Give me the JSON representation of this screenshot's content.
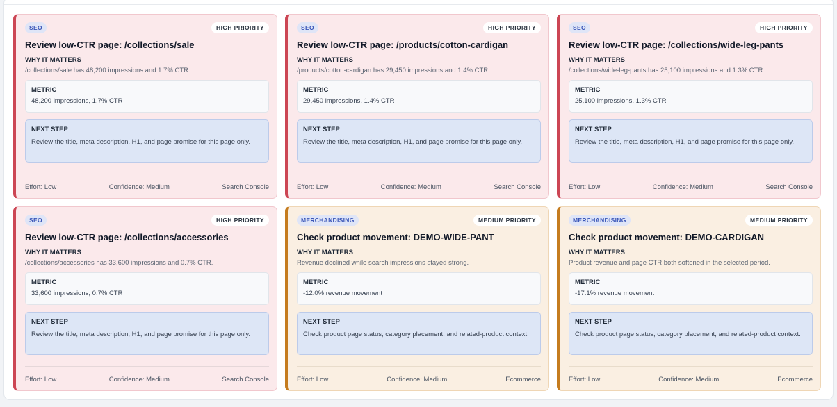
{
  "cards": [
    {
      "tag": "SEO",
      "priority": "HIGH PRIORITY",
      "title": "Review low-CTR page: /collections/sale",
      "why_label": "WHY IT MATTERS",
      "why_text": "/collections/sale has 48,200 impressions and 1.7% CTR.",
      "metric_label": "METRIC",
      "metric_value": "48,200 impressions, 1.7% CTR",
      "next_label": "NEXT STEP",
      "next_text": "Review the title, meta description, H1, and page promise for this page only.",
      "effort": "Effort: Low",
      "confidence": "Confidence: Medium",
      "source": "Search Console"
    },
    {
      "tag": "SEO",
      "priority": "HIGH PRIORITY",
      "title": "Review low-CTR page: /products/cotton-cardigan",
      "why_label": "WHY IT MATTERS",
      "why_text": "/products/cotton-cardigan has 29,450 impressions and 1.4% CTR.",
      "metric_label": "METRIC",
      "metric_value": "29,450 impressions, 1.4% CTR",
      "next_label": "NEXT STEP",
      "next_text": "Review the title, meta description, H1, and page promise for this page only.",
      "effort": "Effort: Low",
      "confidence": "Confidence: Medium",
      "source": "Search Console"
    },
    {
      "tag": "SEO",
      "priority": "HIGH PRIORITY",
      "title": "Review low-CTR page: /collections/wide-leg-pants",
      "why_label": "WHY IT MATTERS",
      "why_text": "/collections/wide-leg-pants has 25,100 impressions and 1.3% CTR.",
      "metric_label": "METRIC",
      "metric_value": "25,100 impressions, 1.3% CTR",
      "next_label": "NEXT STEP",
      "next_text": "Review the title, meta description, H1, and page promise for this page only.",
      "effort": "Effort: Low",
      "confidence": "Confidence: Medium",
      "source": "Search Console"
    },
    {
      "tag": "SEO",
      "priority": "HIGH PRIORITY",
      "title": "Review low-CTR page: /collections/accessories",
      "why_label": "WHY IT MATTERS",
      "why_text": "/collections/accessories has 33,600 impressions and 0.7% CTR.",
      "metric_label": "METRIC",
      "metric_value": "33,600 impressions, 0.7% CTR",
      "next_label": "NEXT STEP",
      "next_text": "Review the title, meta description, H1, and page promise for this page only.",
      "effort": "Effort: Low",
      "confidence": "Confidence: Medium",
      "source": "Search Console"
    },
    {
      "tag": "MERCHANDISING",
      "priority": "MEDIUM PRIORITY",
      "title": "Check product movement: DEMO-WIDE-PANT",
      "why_label": "WHY IT MATTERS",
      "why_text": "Revenue declined while search impressions stayed strong.",
      "metric_label": "METRIC",
      "metric_value": "-12.0% revenue movement",
      "next_label": "NEXT STEP",
      "next_text": "Check product page status, category placement, and related-product context.",
      "effort": "Effort: Low",
      "confidence": "Confidence: Medium",
      "source": "Ecommerce"
    },
    {
      "tag": "MERCHANDISING",
      "priority": "MEDIUM PRIORITY",
      "title": "Check product movement: DEMO-CARDIGAN",
      "why_label": "WHY IT MATTERS",
      "why_text": "Product revenue and page CTR both softened in the selected period.",
      "metric_label": "METRIC",
      "metric_value": "-17.1% revenue movement",
      "next_label": "NEXT STEP",
      "next_text": "Check product page status, category placement, and related-product context.",
      "effort": "Effort: Low",
      "confidence": "Confidence: Medium",
      "source": "Ecommerce"
    }
  ],
  "colors": {
    "seo_accent": "#cc4654",
    "seo_bg": "#fbe9eb",
    "merch_accent": "#c57c1f",
    "merch_bg": "#faefe2",
    "tag_text": "#3a56b8",
    "next_step_bg": "#dde6f6"
  }
}
